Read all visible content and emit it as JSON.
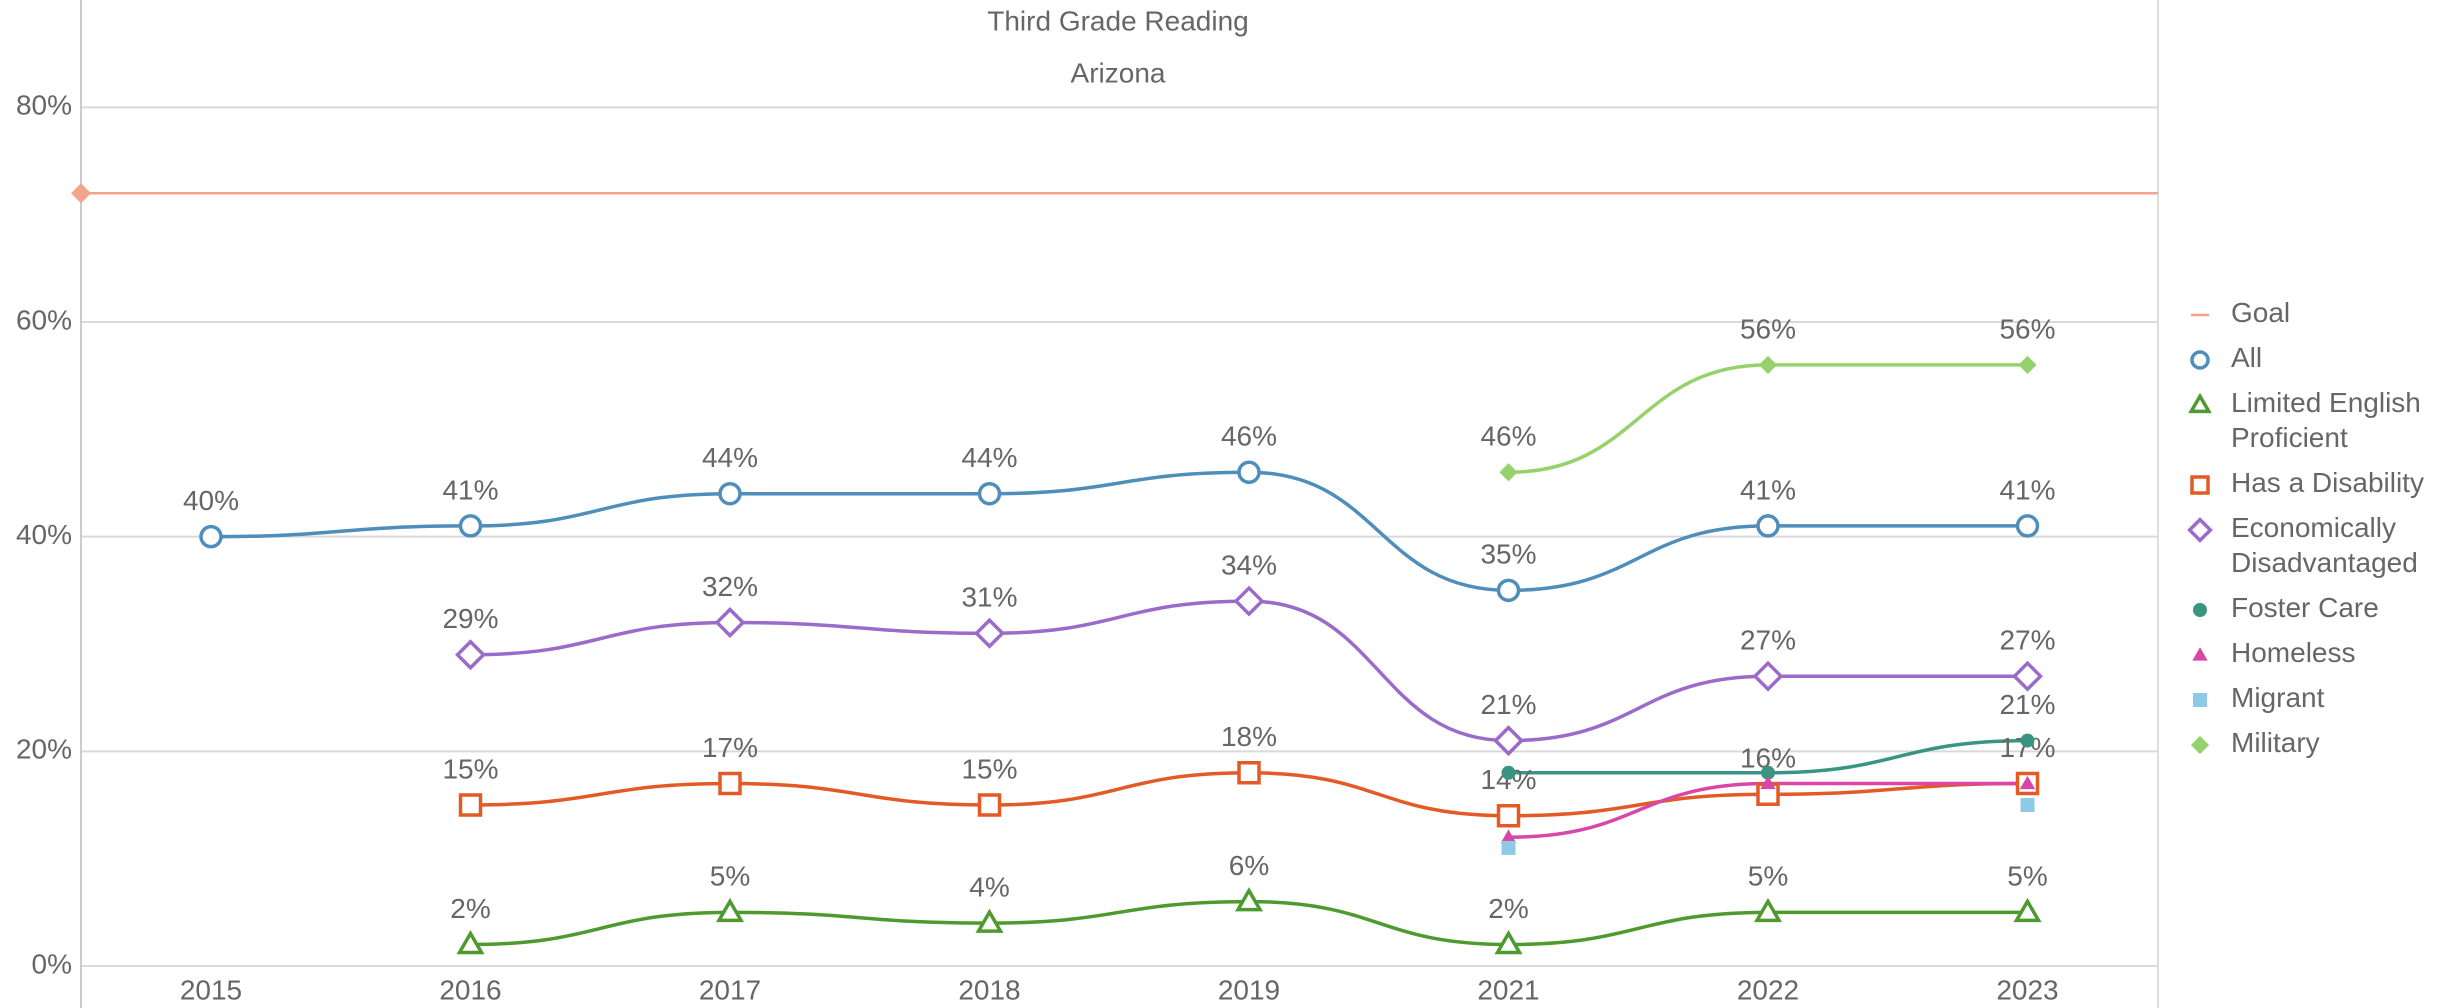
{
  "chart_data": {
    "type": "line",
    "title": "Third Grade Reading",
    "subtitle": "Arizona",
    "categories": [
      "2015",
      "2016",
      "2017",
      "2018",
      "2019",
      "2021",
      "2022",
      "2023"
    ],
    "ylim": [
      0,
      90
    ],
    "yticks": [
      {
        "value": 0,
        "label": "0%"
      },
      {
        "value": 20,
        "label": "20%"
      },
      {
        "value": 40,
        "label": "40%"
      },
      {
        "value": 60,
        "label": "60%"
      },
      {
        "value": 80,
        "label": "80%"
      }
    ],
    "grid": true,
    "legend": "right",
    "goal": {
      "name": "Goal",
      "color": "#f2a58c",
      "value": 72
    },
    "series": [
      {
        "name": "All",
        "color": "#4f8dbb",
        "marker": "circle",
        "filled": false,
        "values": [
          40,
          41,
          44,
          44,
          46,
          35,
          41,
          41
        ],
        "value_labels": [
          "40%",
          "41%",
          "44%",
          "44%",
          "46%",
          "35%",
          "41%",
          "41%"
        ]
      },
      {
        "name": "Limited English Proficient",
        "color": "#4e9a2f",
        "marker": "triangle",
        "filled": false,
        "values": [
          null,
          2,
          5,
          4,
          6,
          2,
          5,
          5
        ],
        "value_labels": [
          null,
          "2%",
          "5%",
          "4%",
          "6%",
          "2%",
          "5%",
          "5%"
        ]
      },
      {
        "name": "Has a Disability",
        "color": "#e35a25",
        "marker": "square",
        "filled": false,
        "values": [
          null,
          15,
          17,
          15,
          18,
          14,
          16,
          17
        ],
        "value_labels": [
          null,
          "15%",
          "17%",
          "15%",
          "18%",
          "14%",
          "16%",
          "17%"
        ]
      },
      {
        "name": "Economically Disadvantaged",
        "color": "#9b6bc9",
        "marker": "diamond",
        "filled": false,
        "values": [
          null,
          29,
          32,
          31,
          34,
          21,
          27,
          27
        ],
        "value_labels": [
          null,
          "29%",
          "32%",
          "31%",
          "34%",
          "21%",
          "27%",
          "27%"
        ]
      },
      {
        "name": "Foster Care",
        "color": "#3a9482",
        "marker": "circle",
        "filled": true,
        "values": [
          null,
          null,
          null,
          null,
          null,
          18,
          18,
          21
        ],
        "value_labels": [
          null,
          null,
          null,
          null,
          null,
          null,
          null,
          "21%"
        ]
      },
      {
        "name": "Homeless",
        "color": "#d946a8",
        "marker": "triangle",
        "filled": true,
        "values": [
          null,
          null,
          null,
          null,
          null,
          12,
          17,
          17
        ]
      },
      {
        "name": "Migrant",
        "color": "#8ecae6",
        "marker": "square",
        "filled": true,
        "values": [
          null,
          null,
          null,
          null,
          null,
          11,
          null,
          15
        ]
      },
      {
        "name": "Military",
        "color": "#96d26b",
        "marker": "diamond",
        "filled": true,
        "values": [
          null,
          null,
          null,
          null,
          null,
          46,
          56,
          56
        ],
        "value_labels": [
          null,
          null,
          null,
          null,
          null,
          "46%",
          "56%",
          "56%"
        ]
      }
    ]
  }
}
